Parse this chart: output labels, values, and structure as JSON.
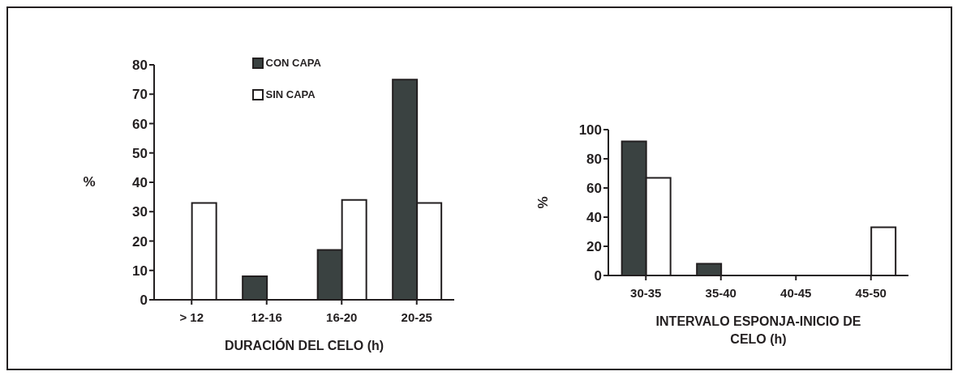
{
  "chart_data": [
    {
      "type": "bar",
      "xlabel": "DURACIÓN DEL CELO (h)",
      "ylabel": "%",
      "categories": [
        "> 12",
        "12-16",
        "16-20",
        "20-25"
      ],
      "series": [
        {
          "name": "CON CAPA",
          "color": "#3a4241",
          "values": [
            0,
            8,
            17,
            75
          ]
        },
        {
          "name": "SIN CAPA",
          "color": "#ffffff",
          "values": [
            33,
            0,
            34,
            33
          ]
        }
      ],
      "ylim": [
        0,
        80
      ],
      "yticks": [
        0,
        10,
        20,
        30,
        40,
        50,
        60,
        70,
        80
      ],
      "legend": "top",
      "grid": false
    },
    {
      "type": "bar",
      "xlabel": "INTERVALO ESPONJA-INICIO DE CELO (h)",
      "ylabel": "%",
      "categories": [
        "30-35",
        "35-40",
        "40-45",
        "45-50"
      ],
      "series": [
        {
          "color": "#3a4241",
          "values": [
            92,
            8,
            0,
            0
          ]
        },
        {
          "color": "#ffffff",
          "values": [
            67,
            0,
            0,
            33
          ]
        }
      ],
      "ylim": [
        0,
        100
      ],
      "yticks": [
        0,
        20,
        40,
        60,
        80,
        100
      ],
      "grid": false
    }
  ]
}
